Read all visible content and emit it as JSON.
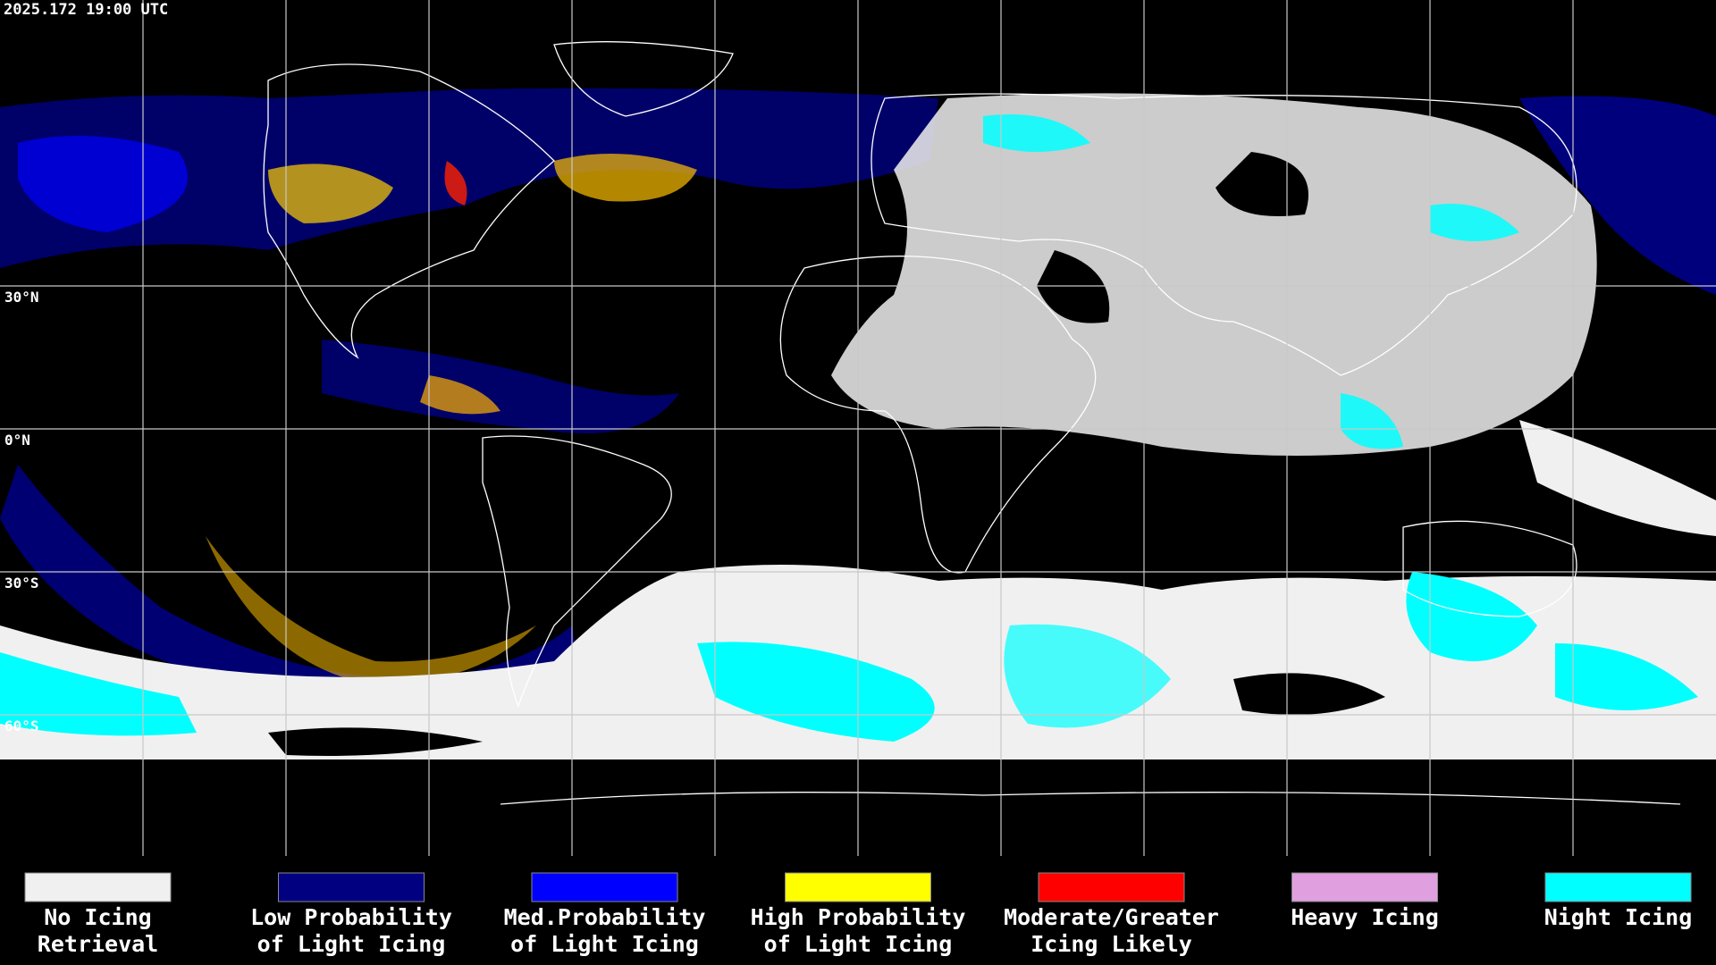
{
  "timestamp": "2025.172 19:00 UTC",
  "latitude_labels": [
    "30°N",
    "0°N",
    "30°S",
    "60°S"
  ],
  "legend": [
    {
      "lines": [
        "No Icing",
        "Retrieval"
      ],
      "color": "#f0f0f0"
    },
    {
      "lines": [
        "Low Probability",
        "of Light Icing"
      ],
      "color": "#000080"
    },
    {
      "lines": [
        "Med.Probability",
        "of Light Icing"
      ],
      "color": "#0000ff"
    },
    {
      "lines": [
        "High Probability",
        "of Light Icing"
      ],
      "color": "#ffff00"
    },
    {
      "lines": [
        "Moderate/Greater",
        "Icing Likely"
      ],
      "color": "#ff0000"
    },
    {
      "lines": [
        "Heavy Icing"
      ],
      "color": "#e0a0e0"
    },
    {
      "lines": [
        "Night Icing"
      ],
      "color": "#00ffff"
    }
  ]
}
